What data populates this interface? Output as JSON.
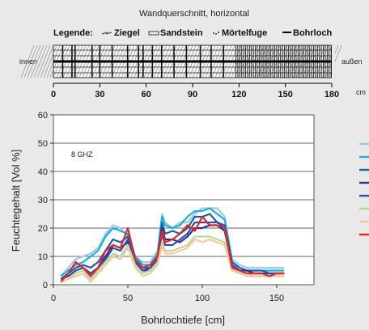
{
  "wall": {
    "title": "Wandquerschnitt, horizontal",
    "legend_heading": "Legende:",
    "legend_items": [
      "Ziegel",
      "Sandstein",
      "Mörtelfuge",
      "Bohrloch"
    ],
    "side_left": "innen",
    "side_right": "außen",
    "unit": "cm",
    "ticks": [
      0,
      30,
      60,
      90,
      120,
      150,
      180
    ],
    "range": [
      0,
      180
    ]
  },
  "chart_data": {
    "type": "line",
    "xlabel": "Bohrlochtiefe [cm]",
    "ylabel": "Feuchtegehalt [Vol %]",
    "annotation": "8 GHZ",
    "xlim": [
      0,
      175
    ],
    "ylim": [
      0,
      60
    ],
    "xticks": [
      0,
      50,
      100,
      150
    ],
    "yticks": [
      0,
      10,
      20,
      30,
      40,
      50,
      60
    ],
    "grid": true,
    "legend_position": "right",
    "series": [
      {
        "color": "#9dc8e6",
        "x": [
          5,
          10,
          15,
          20,
          25,
          30,
          35,
          40,
          45,
          50,
          55,
          60,
          65,
          70,
          73,
          75,
          80,
          85,
          90,
          95,
          100,
          105,
          110,
          115,
          120,
          125,
          130,
          135,
          140,
          145,
          150,
          155
        ],
        "y": [
          3,
          6,
          9,
          10,
          11,
          13,
          18,
          21,
          20,
          17,
          10,
          8,
          8,
          12,
          25,
          22,
          20,
          22,
          22,
          25,
          27,
          27,
          27,
          24,
          9,
          7,
          6,
          6,
          6,
          6,
          6,
          6
        ]
      },
      {
        "color": "#1eaed8",
        "x": [
          5,
          10,
          15,
          20,
          25,
          30,
          35,
          40,
          45,
          50,
          55,
          60,
          65,
          70,
          73,
          75,
          80,
          85,
          90,
          95,
          100,
          105,
          110,
          115,
          120,
          125,
          130,
          135,
          140,
          145,
          150,
          155
        ],
        "y": [
          3,
          5,
          7,
          8,
          10,
          12,
          17,
          20,
          19,
          18,
          10,
          7,
          7,
          11,
          24,
          21,
          20,
          21,
          24,
          26,
          26,
          27,
          25,
          23,
          8,
          6,
          5,
          5,
          5,
          5,
          5,
          5
        ]
      },
      {
        "color": "#1a5fa8",
        "x": [
          5,
          10,
          15,
          20,
          25,
          30,
          35,
          40,
          45,
          50,
          55,
          60,
          65,
          70,
          73,
          75,
          80,
          85,
          90,
          95,
          100,
          105,
          110,
          115,
          120,
          125,
          130,
          135,
          140,
          145,
          150,
          155
        ],
        "y": [
          2,
          4,
          6,
          7,
          6,
          8,
          12,
          16,
          15,
          17,
          9,
          6,
          6,
          10,
          22,
          18,
          19,
          18,
          20,
          24,
          24,
          25,
          22,
          21,
          8,
          6,
          5,
          5,
          5,
          4,
          4,
          4
        ]
      },
      {
        "color": "#2a2f9a",
        "x": [
          5,
          10,
          15,
          20,
          25,
          30,
          35,
          40,
          45,
          50,
          55,
          60,
          65,
          70,
          73,
          75,
          80,
          85,
          90,
          95,
          100,
          105,
          110,
          115,
          120,
          125,
          130,
          135,
          140,
          145,
          150,
          155
        ],
        "y": [
          2,
          3,
          5,
          6,
          4,
          6,
          10,
          14,
          13,
          15,
          8,
          5,
          5,
          9,
          20,
          16,
          16,
          15,
          17,
          20,
          20,
          21,
          21,
          19,
          7,
          5,
          5,
          4,
          4,
          4,
          4,
          4
        ]
      },
      {
        "color": "#3a4aa8",
        "x": [
          5,
          10,
          15,
          20,
          25,
          30,
          35,
          40,
          45,
          50,
          55,
          60,
          65,
          70,
          73,
          75,
          80,
          85,
          90,
          95,
          100,
          105,
          110,
          115,
          120,
          125,
          130,
          135,
          140,
          145,
          150,
          155
        ],
        "y": [
          2,
          3,
          5,
          6,
          4,
          6,
          9,
          13,
          12,
          16,
          8,
          5,
          6,
          9,
          18,
          14,
          14,
          16,
          18,
          22,
          22,
          22,
          22,
          20,
          7,
          5,
          4,
          4,
          4,
          4,
          4,
          4
        ]
      },
      {
        "color": "#b5d9a0",
        "x": [
          5,
          10,
          15,
          20,
          25,
          30,
          35,
          40,
          45,
          50,
          55,
          60,
          65,
          70,
          73,
          75,
          80,
          85,
          90,
          95,
          100,
          105,
          110,
          115,
          120,
          125,
          130,
          135,
          140,
          145,
          150,
          155
        ],
        "y": [
          1,
          2,
          4,
          5,
          2,
          5,
          8,
          11,
          10,
          14,
          7,
          4,
          5,
          8,
          15,
          12,
          12,
          13,
          14,
          17,
          17,
          17,
          16,
          15,
          6,
          4,
          4,
          3,
          3,
          3,
          3,
          3
        ]
      },
      {
        "color": "#f7c89a",
        "x": [
          5,
          10,
          15,
          20,
          25,
          30,
          35,
          40,
          45,
          50,
          55,
          60,
          65,
          70,
          73,
          75,
          80,
          85,
          90,
          95,
          100,
          105,
          110,
          115,
          120,
          125,
          130,
          135,
          140,
          145,
          150,
          155
        ],
        "y": [
          1,
          2,
          3,
          4,
          1,
          4,
          7,
          10,
          9,
          13,
          6,
          3,
          4,
          7,
          14,
          11,
          11,
          12,
          13,
          16,
          15,
          16,
          15,
          14,
          5,
          4,
          3,
          3,
          3,
          3,
          3,
          3
        ]
      },
      {
        "color": "#e02828",
        "x": [
          5,
          10,
          15,
          20,
          25,
          30,
          35,
          40,
          45,
          50,
          55,
          60,
          65,
          70,
          73,
          75,
          80,
          85,
          90,
          95,
          100,
          105,
          110,
          115,
          120,
          125,
          130,
          135,
          140,
          145,
          150,
          155
        ],
        "y": [
          1,
          4,
          8,
          6,
          3,
          6,
          12,
          14,
          13,
          20,
          9,
          6,
          7,
          10,
          19,
          15,
          16,
          18,
          21,
          19,
          24,
          21,
          21,
          20,
          6,
          5,
          4,
          4,
          4,
          3,
          4,
          4
        ]
      }
    ]
  }
}
